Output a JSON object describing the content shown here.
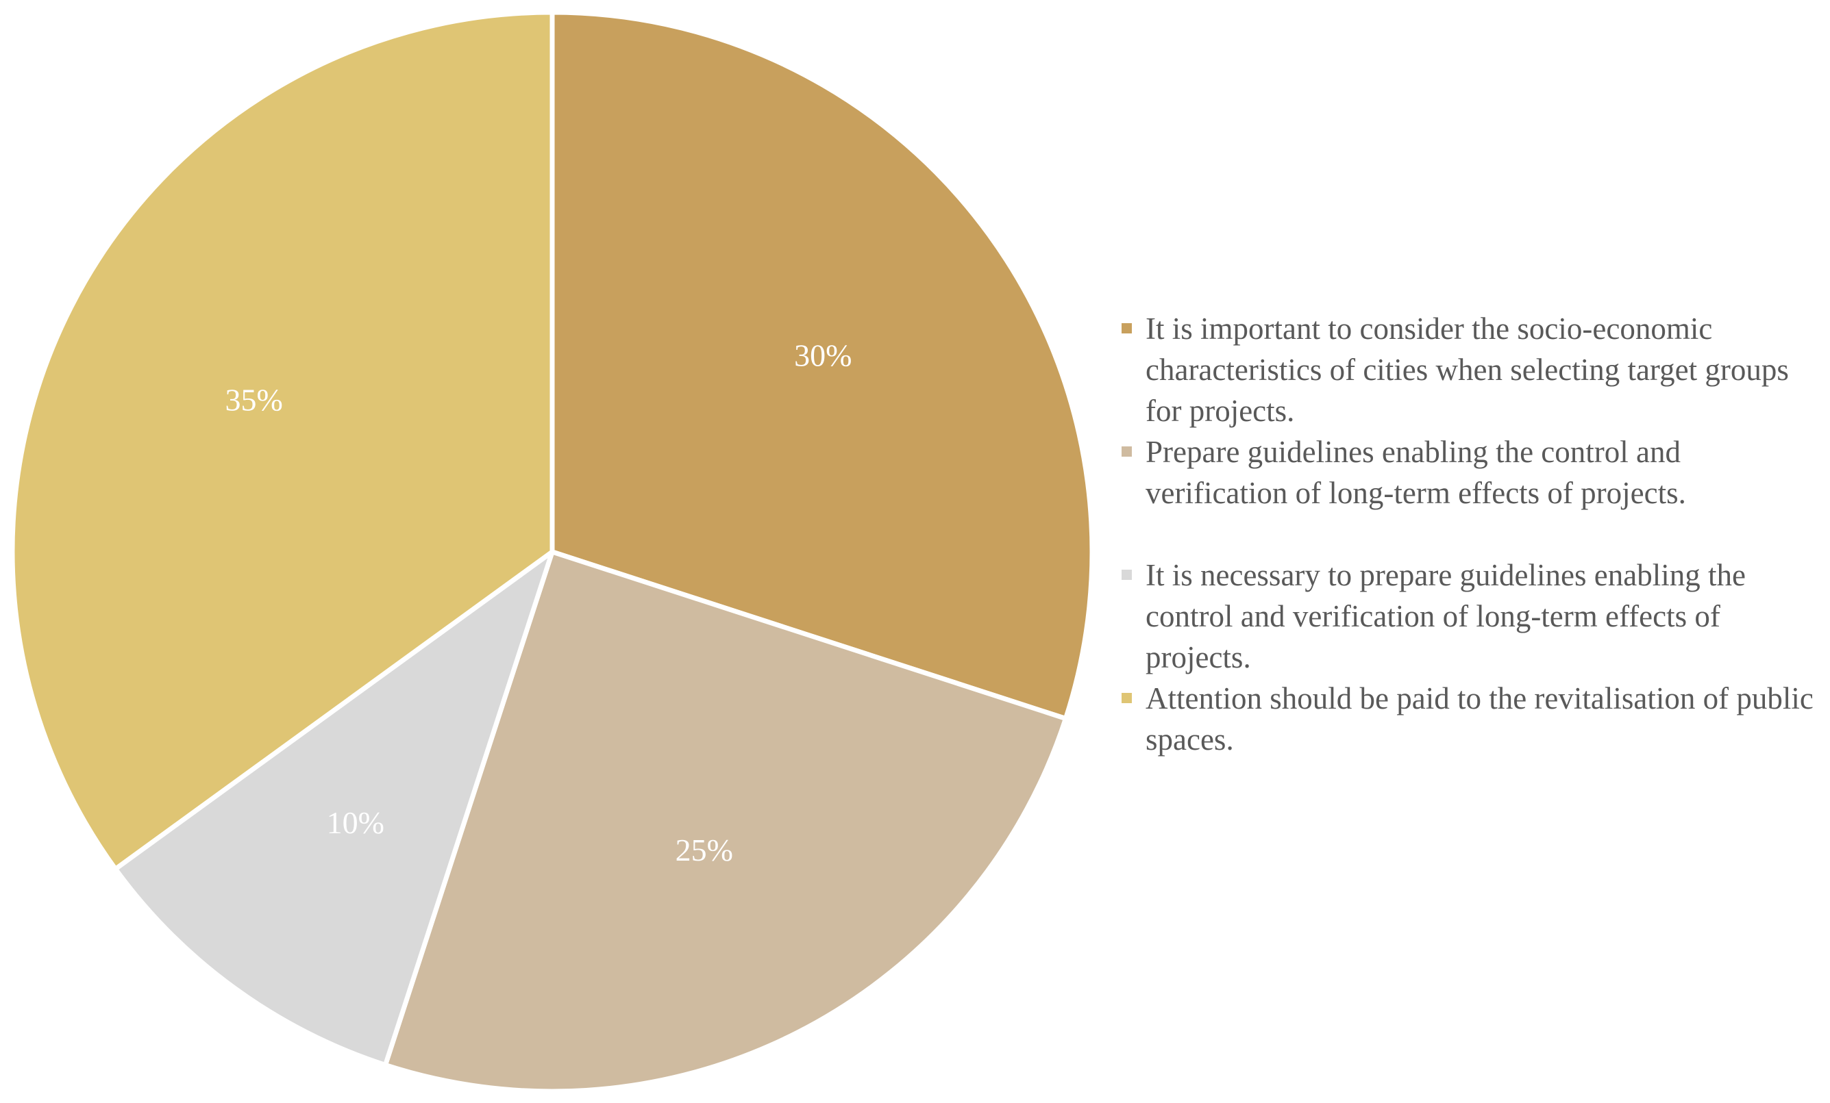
{
  "chart_data": {
    "type": "pie",
    "start_angle_deg": 0,
    "direction": "clockwise",
    "legend_position": "right",
    "slices": [
      {
        "label": "It is important to consider the socio-economic characteristics of cities when selecting target groups for projects.",
        "value": 30,
        "display": "30%",
        "color": "#C8A05D"
      },
      {
        "label": "Prepare guidelines enabling the control and verification of long-term effects of projects.",
        "value": 25,
        "display": "25%",
        "color": "#CFBBA0"
      },
      {
        "label": "It is necessary to prepare guidelines enabling the control and verification of long-term effects of projects.",
        "value": 10,
        "display": "10%",
        "color": "#D9D9D9"
      },
      {
        "label": "Attention should be paid to the revitalisation of public spaces.",
        "value": 35,
        "display": "35%",
        "color": "#DFC574"
      }
    ]
  }
}
